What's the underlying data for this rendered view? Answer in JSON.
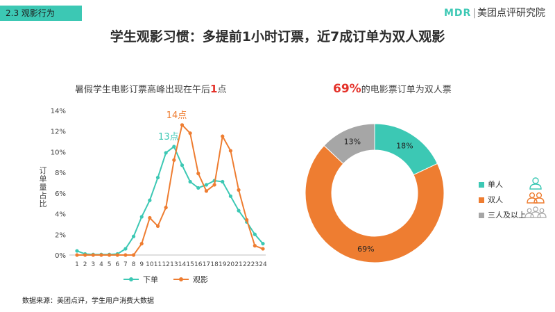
{
  "section_tag": "2.3 观影行为",
  "logo": {
    "brand": "MDR",
    "name": "美团点评研究院"
  },
  "headline": "学生观影习惯：多提前1小时订票，近7成订单为双人观影",
  "source": "数据来源：美团点评，学生用户消费大数据",
  "colors": {
    "teal": "#3cc8b4",
    "orange": "#ee7d31",
    "gray": "#a6a6a6",
    "red": "#e4322a"
  },
  "chart_data": [
    {
      "type": "line",
      "title_prefix": "暑假学生电影订票高峰出现在午后",
      "title_highlight": "1",
      "title_suffix": "点",
      "ylabel": "订单量占比",
      "x": [
        1,
        2,
        3,
        4,
        5,
        6,
        7,
        8,
        9,
        10,
        11,
        12,
        13,
        14,
        15,
        16,
        17,
        18,
        19,
        20,
        21,
        22,
        23,
        24
      ],
      "ylim": [
        0,
        14
      ],
      "yticks": [
        "0%",
        "2%",
        "4%",
        "6%",
        "8%",
        "10%",
        "12%",
        "14%"
      ],
      "series": [
        {
          "name": "下单",
          "color": "#3cc8b4",
          "values": [
            0.4,
            0.1,
            0.05,
            0.05,
            0.05,
            0.1,
            0.6,
            1.8,
            3.7,
            5.3,
            7.5,
            9.9,
            10.5,
            8.7,
            7.1,
            6.5,
            6.8,
            7.2,
            7.1,
            5.7,
            4.3,
            3.2,
            2.0,
            1.1
          ]
        },
        {
          "name": "观影",
          "color": "#ee7d31",
          "values": [
            0.0,
            0.0,
            0.0,
            0.0,
            0.0,
            0.0,
            0.0,
            0.0,
            1.1,
            3.6,
            2.8,
            4.6,
            9.2,
            12.6,
            11.8,
            7.9,
            6.2,
            6.8,
            11.5,
            10.1,
            6.3,
            3.4,
            0.9,
            0.6
          ]
        }
      ],
      "annotations": [
        {
          "text": "13点",
          "x": 13,
          "y": 10.5,
          "color": "#3cc8b4"
        },
        {
          "text": "14点",
          "x": 14,
          "y": 12.6,
          "color": "#ee7d31"
        }
      ]
    },
    {
      "type": "pie",
      "variant": "donut",
      "title_pct": "69%",
      "title_suffix": "的电影票订单为双人票",
      "slices": [
        {
          "name": "单人",
          "value": 18,
          "label": "18%",
          "color": "#3cc8b4",
          "icon": "single-person-icon"
        },
        {
          "name": "双人",
          "value": 69,
          "label": "69%",
          "color": "#ee7d31",
          "icon": "two-people-icon"
        },
        {
          "name": "三人及以上",
          "value": 13,
          "label": "13%",
          "color": "#a6a6a6",
          "icon": "group-people-icon"
        }
      ]
    }
  ]
}
